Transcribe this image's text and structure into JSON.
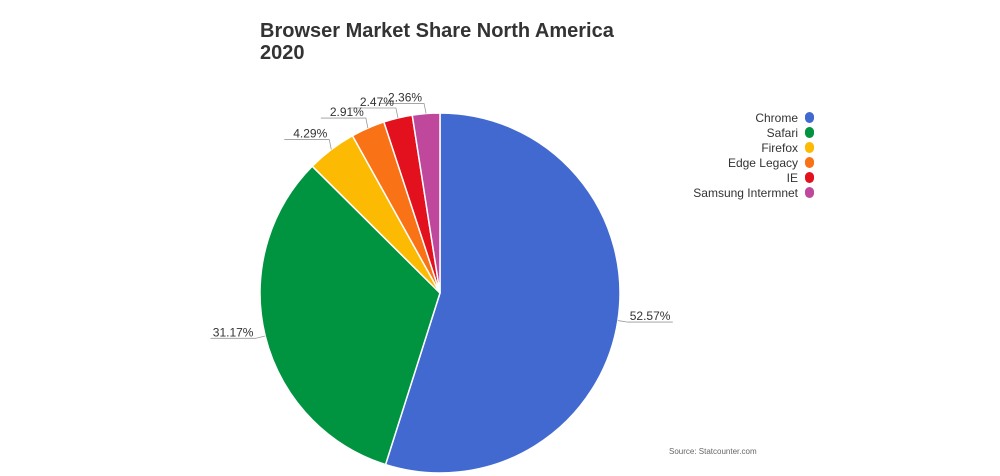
{
  "chart_data": {
    "type": "pie",
    "title_line1": "Browser Market Share North America",
    "title_line2": "2020",
    "slices": [
      {
        "label": "Chrome",
        "value": 52.57,
        "label_text": "52.57%",
        "color": "#4169d0"
      },
      {
        "label": "Safari",
        "value": 31.17,
        "label_text": "31.17%",
        "color": "#009440"
      },
      {
        "label": "Firefox",
        "value": 4.29,
        "label_text": "4.29%",
        "color": "#fcba03"
      },
      {
        "label": "Edge Legacy",
        "value": 2.91,
        "label_text": "2.91%",
        "color": "#fa7216"
      },
      {
        "label": "IE",
        "value": 2.47,
        "label_text": "2.47%",
        "color": "#e3101e"
      },
      {
        "label": "Samsung Intermnet",
        "value": 2.36,
        "label_text": "2.36%",
        "color": "#c0489c"
      }
    ],
    "legend_position": "right",
    "source": "Source: Statcounter.com"
  }
}
